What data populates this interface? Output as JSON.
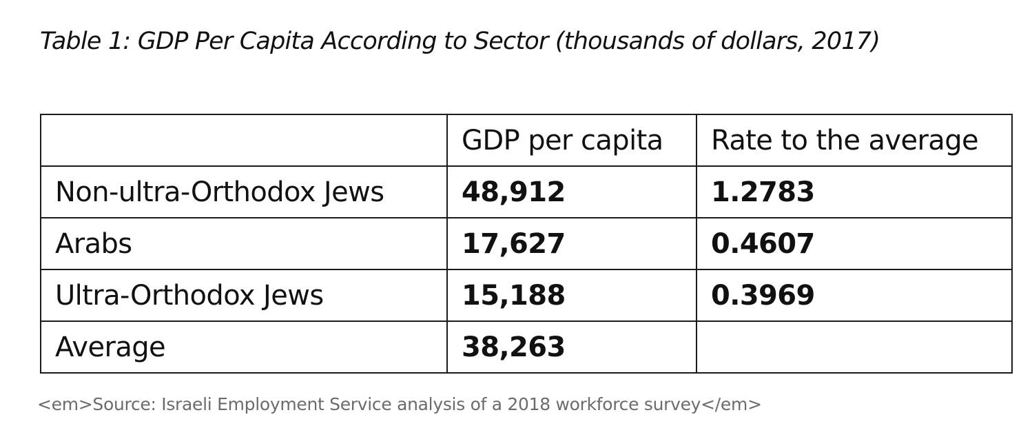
{
  "title": "Table 1: GDP Per Capita According to Sector (thousands of dollars, 2017)",
  "table": {
    "headers": [
      "",
      "GDP per capita",
      "Rate to the average"
    ],
    "rows": [
      {
        "sector": "Non-ultra-Orthodox Jews",
        "gdp": "48,912",
        "rate": "1.2783"
      },
      {
        "sector": "Arabs",
        "gdp": "17,627",
        "rate": "0.4607"
      },
      {
        "sector": "Ultra-Orthodox Jews",
        "gdp": "15,188",
        "rate": "0.3969"
      },
      {
        "sector": "Average",
        "gdp": "38,263",
        "rate": ""
      }
    ]
  },
  "source": "<em>Source: Israeli Employment Service analysis of a 2018 workforce survey</em>"
}
